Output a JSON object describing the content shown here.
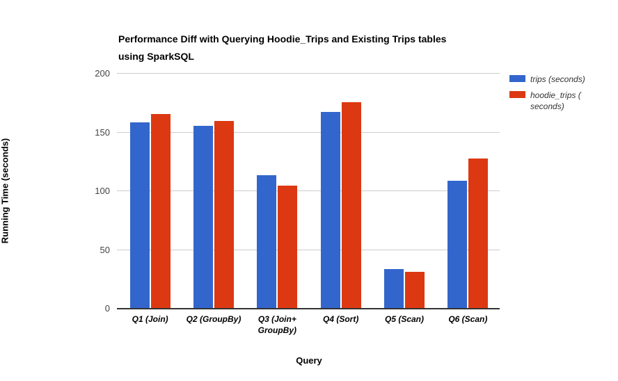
{
  "title": "Performance Diff with Querying Hoodie_Trips and Existing Trips tables using SparkSQL",
  "chart_data": {
    "type": "bar",
    "title": "Performance Diff with Querying Hoodie_Trips and Existing Trips tables using SparkSQL",
    "xlabel": "Query",
    "ylabel": "Running Time (seconds)",
    "categories": [
      "Q1 (Join)",
      "Q2 (GroupBy)",
      "Q3 (Join+ GroupBy)",
      "Q4 (Sort)",
      "Q5 (Scan)",
      "Q6 (Scan)"
    ],
    "series": [
      {
        "name": "trips (seconds)",
        "color": "#3366CC",
        "values": [
          158,
          155,
          113,
          167,
          33,
          108
        ]
      },
      {
        "name": "hoodie_trips (seconds)",
        "color": "#DC3912",
        "values": [
          165,
          159,
          104,
          175,
          31,
          127
        ]
      }
    ],
    "ylim": [
      0,
      200
    ],
    "yticks": [
      0,
      50,
      100,
      150,
      200
    ],
    "grid": true,
    "legend_position": "right"
  },
  "legend": {
    "items": [
      {
        "lines": [
          "trips (seconds)"
        ],
        "color": "#3366CC"
      },
      {
        "lines": [
          "hoodie_trips (",
          "seconds)"
        ],
        "color": "#DC3912"
      }
    ]
  },
  "colors": {
    "gridline": "#cccccc",
    "axis_line": "#333333",
    "tick_text": "#444444",
    "background": "#ffffff"
  }
}
